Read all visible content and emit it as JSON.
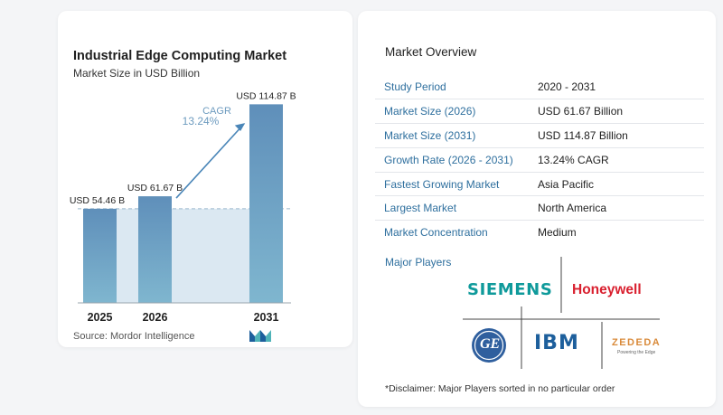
{
  "chart_card": {
    "title": "Industrial Edge Computing Market",
    "subtitle": "Market Size in USD Billion",
    "source": "Source:  Mordor Intelligence",
    "logo_icon": "mordor-intelligence-logo-icon"
  },
  "chart_data": {
    "type": "bar",
    "title": "Industrial Edge Computing Market",
    "subtitle": "Market Size in USD Billion",
    "categories": [
      "2025",
      "2026",
      "2031"
    ],
    "values": [
      54.46,
      61.67,
      114.87
    ],
    "data_labels": [
      "USD 54.46 B",
      "USD 61.67 B",
      "USD 114.87 B"
    ],
    "ylim": [
      0,
      125
    ],
    "xlabel": "",
    "ylabel": "",
    "annotation": {
      "label": "CAGR",
      "value": "13.24%"
    },
    "grid": false,
    "colors": {
      "bar": "#6c9cc2",
      "bar_light": "#dbe8f2",
      "accent": "#4a86b8",
      "annotation": "#6d9bbf"
    }
  },
  "overview": {
    "title": "Market Overview",
    "rows": [
      {
        "label": "Study Period",
        "value": "2020 - 2031"
      },
      {
        "label": "Market Size (2026)",
        "value": "USD 61.67 Billion"
      },
      {
        "label": "Market Size (2031)",
        "value": "USD 114.87 Billion"
      },
      {
        "label": "Growth Rate (2026 - 2031)",
        "value": "13.24% CAGR"
      },
      {
        "label": "Fastest Growing Market",
        "value": "Asia Pacific"
      },
      {
        "label": "Largest Market",
        "value": "North America"
      },
      {
        "label": "Market Concentration",
        "value": "Medium"
      }
    ],
    "players_label": "Major Players",
    "players": {
      "siemens": "SIEMENS",
      "honeywell": "Honeywell",
      "ge": "GE",
      "ibm": "IBM",
      "zededa": "ZEDEDA",
      "zededa_tagline": "Powering the Edge"
    },
    "disclaimer": "*Disclaimer: Major Players sorted in no particular order"
  }
}
